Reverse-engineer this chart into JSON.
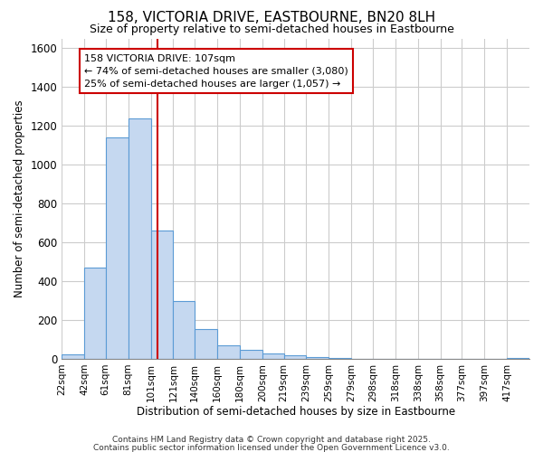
{
  "title1": "158, VICTORIA DRIVE, EASTBOURNE, BN20 8LH",
  "title2": "Size of property relative to semi-detached houses in Eastbourne",
  "xlabel": "Distribution of semi-detached houses by size in Eastbourne",
  "ylabel": "Number of semi-detached properties",
  "categories": [
    "22sqm",
    "42sqm",
    "61sqm",
    "81sqm",
    "101sqm",
    "121sqm",
    "140sqm",
    "160sqm",
    "180sqm",
    "200sqm",
    "219sqm",
    "239sqm",
    "259sqm",
    "279sqm",
    "298sqm",
    "318sqm",
    "338sqm",
    "358sqm",
    "377sqm",
    "397sqm",
    "417sqm"
  ],
  "values": [
    25,
    470,
    1140,
    1240,
    660,
    300,
    155,
    70,
    45,
    30,
    18,
    8,
    3,
    2,
    1,
    1,
    0,
    0,
    0,
    0,
    3
  ],
  "bar_color": "#c5d8f0",
  "bar_edge_color": "#5b9bd5",
  "red_line_x": 107,
  "bin_edges": [
    22,
    42,
    61,
    81,
    101,
    121,
    140,
    160,
    180,
    200,
    219,
    239,
    259,
    279,
    298,
    318,
    338,
    358,
    377,
    397,
    417,
    437
  ],
  "annotation_text": "158 VICTORIA DRIVE: 107sqm\n← 74% of semi-detached houses are smaller (3,080)\n25% of semi-detached houses are larger (1,057) →",
  "annotation_box_color": "#ffffff",
  "annotation_box_edge_color": "#cc0000",
  "ylim": [
    0,
    1650
  ],
  "footer1": "Contains HM Land Registry data © Crown copyright and database right 2025.",
  "footer2": "Contains public sector information licensed under the Open Government Licence v3.0.",
  "background_color": "#ffffff",
  "grid_color": "#cccccc",
  "yticks": [
    0,
    200,
    400,
    600,
    800,
    1000,
    1200,
    1400,
    1600
  ]
}
